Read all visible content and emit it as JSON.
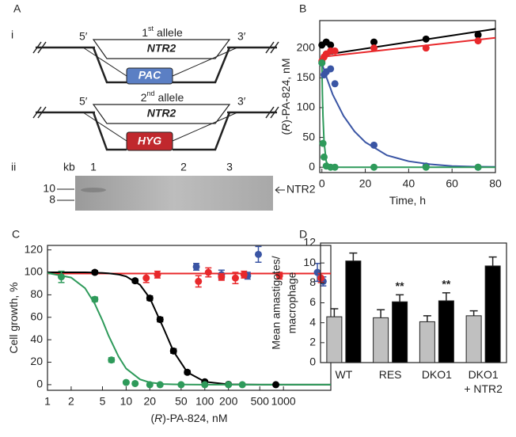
{
  "panel_a": {
    "label": "A",
    "part_i": "i",
    "part_ii": "ii",
    "allele1": {
      "five": "5′",
      "num": "1",
      "sup": "st",
      "rest": "allele",
      "three": "3′",
      "gene": "NTR2",
      "marker": "PAC"
    },
    "allele2": {
      "five": "5′",
      "num": "2",
      "sup": "nd",
      "rest": "allele",
      "three": "3′",
      "gene": "NTR2",
      "marker": "HYG"
    },
    "gel": {
      "unit": "kb",
      "lanes": [
        "1",
        "2",
        "3"
      ],
      "markers": [
        "10",
        "8"
      ],
      "band": "NTR2"
    }
  },
  "chart_data": [
    {
      "panel": "B",
      "type": "scatter",
      "xlabel": [
        "Time, h"
      ],
      "ylabel": [
        "(",
        "R",
        ")-PA-824, nM"
      ],
      "xlim": [
        -1,
        80
      ],
      "ylim": [
        -9,
        246
      ],
      "xticks": [
        0,
        20,
        40,
        60,
        80
      ],
      "yticks": [
        0,
        50,
        100,
        150,
        200
      ],
      "series": [
        {
          "color": "#000000",
          "x": [
            0,
            2,
            4,
            24,
            48,
            72
          ],
          "values": [
            205,
            210,
            205,
            210,
            215,
            222
          ],
          "fit": {
            "x": [
              0,
              80
            ],
            "y": [
              188,
              232
            ]
          }
        },
        {
          "color": "#e8282b",
          "x": [
            0,
            1,
            2,
            4,
            6,
            24,
            48,
            72
          ],
          "values": [
            178,
            185,
            190,
            195,
            195,
            200,
            200,
            212
          ],
          "fit": {
            "x": [
              0,
              80
            ],
            "y": [
              185,
              217
            ]
          }
        },
        {
          "color": "#3a55a4",
          "x": [
            0,
            1,
            2,
            4,
            6,
            24,
            48,
            72
          ],
          "values": [
            175,
            155,
            160,
            165,
            140,
            37,
            2,
            0
          ],
          "fit": {
            "x": [
              0,
              0.5,
              1,
              2,
              5,
              10,
              15,
              20,
              30,
              40,
              50,
              60,
              70,
              80
            ],
            "y": [
              175,
              169,
              163,
              152,
              122,
              86,
              60,
              42,
              20,
              10,
              5,
              2,
              1,
              0.6
            ]
          }
        },
        {
          "color": "#2e9a5a",
          "x": [
            0,
            0.5,
            1,
            2,
            4,
            6,
            24,
            48,
            72
          ],
          "values": [
            175,
            40,
            17,
            2,
            0,
            0,
            0,
            0,
            0
          ],
          "fit": {
            "x": [
              0,
              0.25,
              0.5,
              1,
              2,
              3,
              5,
              10,
              80
            ],
            "y": [
              175,
              122,
              86,
              42,
              10,
              2.4,
              0.1,
              0,
              0
            ]
          }
        }
      ]
    },
    {
      "panel": "C",
      "type": "scatter",
      "xscale": "log",
      "xlabel": [
        "(",
        "R",
        ")-PA-824, nM"
      ],
      "ylabel": [
        "Cell growth, %"
      ],
      "xlim": [
        1,
        4000
      ],
      "ylim": [
        -5,
        124
      ],
      "xticks": [
        1,
        2,
        5,
        10,
        20,
        50,
        100,
        200,
        500,
        1000
      ],
      "yticks": [
        0,
        20,
        40,
        60,
        80,
        100,
        120
      ],
      "series": [
        {
          "color": "#3a55a4",
          "x": [
            78,
            163,
            350,
            480,
            2700,
            3200
          ],
          "values": [
            105,
            98,
            97,
            116,
            100,
            92
          ],
          "errors": [
            3,
            4,
            3,
            7,
            8,
            4
          ]
        },
        {
          "color": "#e8282b",
          "x": [
            18,
            25,
            83,
            111,
            163,
            245,
            315,
            890,
            3000
          ],
          "values": [
            95,
            98,
            92,
            100,
            96,
            95,
            98,
            97,
            95
          ],
          "errors": [
            4,
            3,
            5,
            4,
            3,
            5,
            3,
            3,
            4
          ],
          "fit": {
            "x": [
              1,
              4000
            ],
            "y": [
              99,
              99
            ]
          }
        },
        {
          "color": "#000000",
          "x": [
            4,
            13,
            20,
            27,
            40,
            60,
            100,
            200,
            800
          ],
          "values": [
            100,
            92.5,
            77,
            58,
            30,
            11,
            2.6,
            0.3,
            0
          ],
          "errors": [
            1.5,
            1.5,
            2,
            2,
            2,
            1.5,
            1,
            1,
            1
          ],
          "fit": {
            "x": [
              1,
              2,
              3,
              4,
              5,
              6,
              8,
              10,
              15,
              20,
              30,
              40,
              60,
              100,
              200,
              500,
              1000,
              4000
            ],
            "y": [
              100,
              100,
              100,
              99.8,
              99.5,
              99.2,
              98.1,
              96.4,
              88.9,
              77.1,
              50,
              29.7,
              11.1,
              2.6,
              0.3,
              0,
              0,
              0
            ]
          }
        },
        {
          "color": "#2e9a5a",
          "x": [
            1.5,
            4,
            6.5,
            10,
            13,
            20,
            27,
            50,
            100,
            200,
            300
          ],
          "values": [
            96,
            76,
            22,
            2,
            1,
            0,
            0,
            0,
            0,
            0,
            0
          ],
          "errors": [
            5,
            2,
            2,
            1,
            1,
            1,
            1,
            1,
            1,
            1,
            1
          ],
          "fit": {
            "x": [
              1,
              2,
              3,
              4,
              5,
              6,
              8,
              10,
              15,
              20,
              30,
              40,
              60,
              100,
              4000
            ],
            "y": [
              99.4,
              95.4,
              86,
              72,
              57,
              43.5,
              25,
              14.3,
              4.7,
              2,
              0.6,
              0.3,
              0.1,
              0,
              0
            ]
          }
        }
      ]
    },
    {
      "panel": "D",
      "type": "bar",
      "ylabel": [
        "Mean amastigotes/",
        "macrophage"
      ],
      "categories": [
        "WT",
        "RES",
        "DKO1",
        "DKO1\n+ NTR2"
      ],
      "ylim": [
        0,
        12
      ],
      "yticks": [
        0,
        2,
        4,
        6,
        8,
        10,
        12
      ],
      "series": [
        {
          "color": "#c0c0c0",
          "values": [
            4.6,
            4.5,
            4.1,
            4.7
          ],
          "errors": [
            0.8,
            0.8,
            0.6,
            0.5
          ]
        },
        {
          "color": "#000000",
          "values": [
            10.2,
            6.1,
            6.2,
            9.7
          ],
          "errors": [
            0.8,
            0.7,
            0.8,
            0.9
          ],
          "significance": [
            null,
            "**",
            "**",
            null
          ]
        }
      ]
    }
  ]
}
